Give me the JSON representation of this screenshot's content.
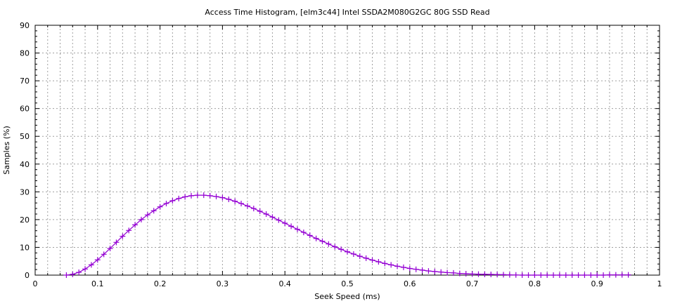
{
  "chart_data": {
    "type": "line",
    "title": "Access Time Histogram, [elm3c44] Intel SSDA2M080G2GC 80G SSD Read",
    "xlabel": "Seek Speed (ms)",
    "ylabel": "Samples (%)",
    "xlim": [
      0,
      1
    ],
    "ylim": [
      0,
      90
    ],
    "xticks": [
      "0",
      "0.1",
      "0.2",
      "0.3",
      "0.4",
      "0.5",
      "0.6",
      "0.7",
      "0.8",
      "0.9",
      "1"
    ],
    "yticks": [
      "0",
      "10",
      "20",
      "30",
      "40",
      "50",
      "60",
      "70",
      "80",
      "90"
    ],
    "grid": true,
    "marker": "plus",
    "color": "#9400d3",
    "x": [
      0.05,
      0.06,
      0.07,
      0.08,
      0.09,
      0.1,
      0.11,
      0.12,
      0.13,
      0.14,
      0.15,
      0.16,
      0.17,
      0.18,
      0.19,
      0.2,
      0.21,
      0.22,
      0.23,
      0.24,
      0.25,
      0.26,
      0.27,
      0.28,
      0.29,
      0.3,
      0.31,
      0.32,
      0.33,
      0.34,
      0.35,
      0.36,
      0.37,
      0.38,
      0.39,
      0.4,
      0.41,
      0.42,
      0.43,
      0.44,
      0.45,
      0.46,
      0.47,
      0.48,
      0.49,
      0.5,
      0.51,
      0.52,
      0.53,
      0.54,
      0.55,
      0.56,
      0.57,
      0.58,
      0.59,
      0.6,
      0.61,
      0.62,
      0.63,
      0.64,
      0.65,
      0.66,
      0.67,
      0.68,
      0.69,
      0.7,
      0.71,
      0.72,
      0.73,
      0.74,
      0.75,
      0.76,
      0.77,
      0.78,
      0.79,
      0.8,
      0.81,
      0.82,
      0.83,
      0.84,
      0.85,
      0.86,
      0.87,
      0.88,
      0.89,
      0.9,
      0.91,
      0.92,
      0.93,
      0.94,
      0.95
    ],
    "y": [
      0,
      0.3,
      1.0,
      2.2,
      3.7,
      5.5,
      7.5,
      9.6,
      11.8,
      14.0,
      16.1,
      18.1,
      20.0,
      21.7,
      23.2,
      24.6,
      25.8,
      26.8,
      27.6,
      28.2,
      28.6,
      28.8,
      28.8,
      28.6,
      28.3,
      27.9,
      27.3,
      26.6,
      25.8,
      24.9,
      24.0,
      23.0,
      22.0,
      20.9,
      19.8,
      18.7,
      17.6,
      16.5,
      15.4,
      14.3,
      13.2,
      12.2,
      11.2,
      10.2,
      9.3,
      8.4,
      7.6,
      6.8,
      6.1,
      5.4,
      4.8,
      4.2,
      3.7,
      3.2,
      2.8,
      2.4,
      2.1,
      1.8,
      1.5,
      1.3,
      1.1,
      0.9,
      0.8,
      0.6,
      0.5,
      0.4,
      0.35,
      0.3,
      0.25,
      0.2,
      0.15,
      0.1,
      0.05,
      0,
      0,
      0,
      0,
      0,
      0,
      0,
      0,
      0,
      0,
      0,
      0,
      0,
      0,
      0.1,
      0.1,
      0.1,
      0.1
    ]
  }
}
